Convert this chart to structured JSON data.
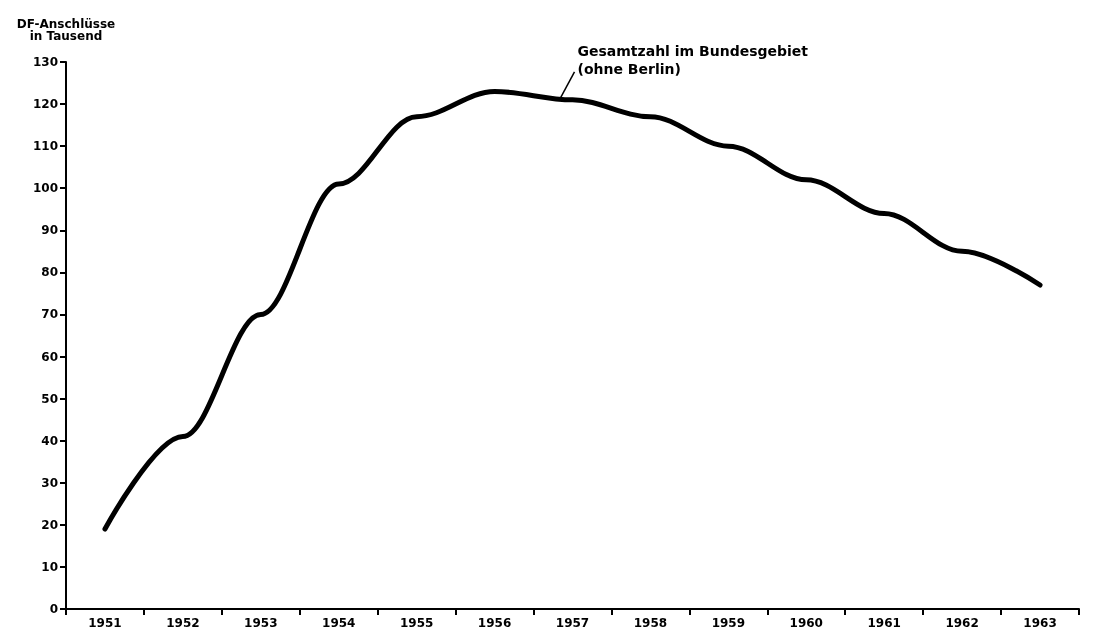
{
  "chart_data": {
    "type": "line",
    "ylabel": "DF-Anschlüsse\nin Tausend",
    "categories": [
      "1951",
      "1952",
      "1953",
      "1954",
      "1955",
      "1956",
      "1957",
      "1958",
      "1959",
      "1960",
      "1961",
      "1962",
      "1963"
    ],
    "series": [
      {
        "color": "#000000",
        "values": [
          19,
          41,
          70,
          101,
          117,
          123,
          121,
          117,
          110,
          102,
          94,
          85,
          77
        ]
      }
    ],
    "ylim": [
      0,
      130
    ],
    "yticks": [
      0,
      10,
      20,
      30,
      40,
      50,
      60,
      70,
      80,
      90,
      100,
      110,
      120,
      130
    ],
    "grid": false,
    "marker": "none",
    "line_style": "solid",
    "annotations": [
      {
        "text": "Gesamtzahl im Bundesgebiet\n(ohne Berlin)",
        "x": "1957",
        "y": 121
      }
    ]
  }
}
